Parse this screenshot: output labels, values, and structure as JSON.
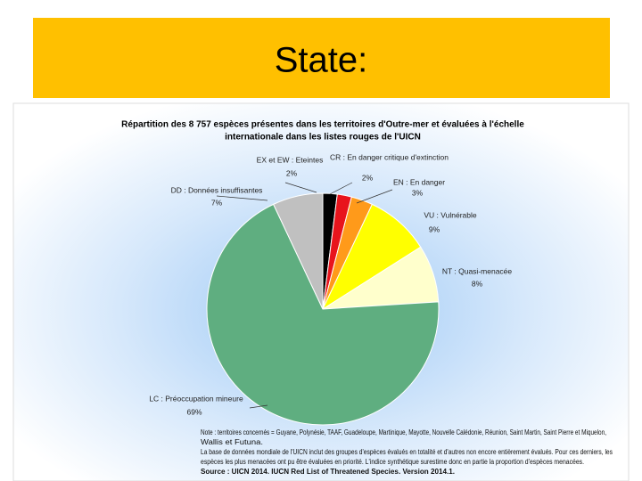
{
  "slide_title": "State:",
  "chart_data": {
    "type": "pie",
    "title": [
      "Répartition des 8 757 espèces présentes dans les territoires d'Outre-mer et évaluées à l'échelle",
      "internationale dans les listes rouges de l'UICN"
    ],
    "categories": [
      "EX et EW : Eteintes",
      "CR : En danger critique d'extinction",
      "EN : En danger",
      "VU : Vulnérable",
      "NT : Quasi-menacée",
      "LC : Préoccupation mineure",
      "DD : Données insuffisantes"
    ],
    "values": [
      2,
      2,
      3,
      9,
      8,
      69,
      7
    ],
    "value_labels": [
      "2%",
      "2%",
      "3%",
      "9%",
      "8%",
      "69%",
      "7%"
    ],
    "colors": [
      "#000000",
      "#e8141c",
      "#ff9a1a",
      "#ffff00",
      "#ffffcc",
      "#5fae80",
      "#c0c0c0"
    ],
    "notes": [
      "Note : territoires concernés = Guyane, Polynésie, TAAF, Guadeloupe, Martinique, Mayotte, Nouvelle Calédonie, Réunion, Saint Martin, Saint Pierre et Miquelon,",
      "Wallis et Futuna.",
      "La base de données mondiale de l'UICN inclut des groupes d'espèces évalués en totalité et d'autres non encore entièrement évalués. Pour ces derniers, les",
      "espèces les plus menacées ont pu être évaluées en priorité. L'indice synthétique surestime donc en partie la proportion d'espèces menacées.",
      "Source : UICN 2014. IUCN Red List of Threatened Species. Version 2014.1."
    ]
  }
}
